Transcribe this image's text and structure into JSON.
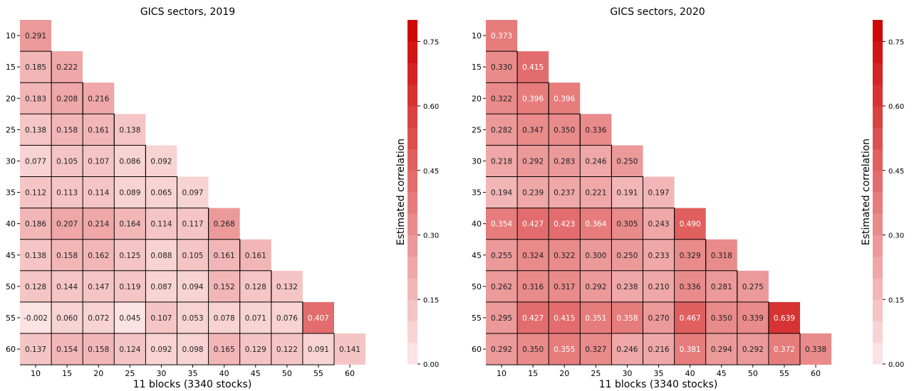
{
  "chart_data": [
    {
      "type": "heatmap",
      "title": "GICS sectors, 2019",
      "xlabel": "11 blocks (3340 stocks)",
      "ylabel": "",
      "categories": [
        "10",
        "15",
        "20",
        "25",
        "30",
        "35",
        "40",
        "45",
        "50",
        "55",
        "60"
      ],
      "matrix_lower_triangle": [
        [
          "0.291"
        ],
        [
          "0.185",
          "0.222"
        ],
        [
          "0.183",
          "0.208",
          "0.216"
        ],
        [
          "0.138",
          "0.158",
          "0.161",
          "0.138"
        ],
        [
          "0.077",
          "0.105",
          "0.107",
          "0.086",
          "0.092"
        ],
        [
          "0.112",
          "0.113",
          "0.114",
          "0.089",
          "0.065",
          "0.097"
        ],
        [
          "0.186",
          "0.207",
          "0.214",
          "0.164",
          "0.114",
          "0.117",
          "0.268"
        ],
        [
          "0.138",
          "0.158",
          "0.162",
          "0.125",
          "0.088",
          "0.105",
          "0.161",
          "0.161"
        ],
        [
          "0.128",
          "0.144",
          "0.147",
          "0.119",
          "0.087",
          "0.094",
          "0.152",
          "0.128",
          "0.132"
        ],
        [
          "-0.002",
          "0.060",
          "0.072",
          "0.045",
          "0.107",
          "0.053",
          "0.078",
          "0.071",
          "0.076",
          "0.407"
        ],
        [
          "0.137",
          "0.154",
          "0.158",
          "0.124",
          "0.092",
          "0.098",
          "0.165",
          "0.129",
          "0.122",
          "0.091",
          "0.141"
        ]
      ],
      "colorbar": {
        "label": "Estimated correlation",
        "range": [
          0,
          0.8
        ],
        "ticks": [
          "0.00",
          "0.15",
          "0.30",
          "0.45",
          "0.60",
          "0.75"
        ],
        "levels": 16,
        "color_low": "#fde9ea",
        "color_high": "#cc0000"
      },
      "grid": false,
      "legend": "none"
    },
    {
      "type": "heatmap",
      "title": "GICS sectors, 2020",
      "xlabel": "11 blocks (3340 stocks)",
      "ylabel": "",
      "categories": [
        "10",
        "15",
        "20",
        "25",
        "30",
        "35",
        "40",
        "45",
        "50",
        "55",
        "60"
      ],
      "matrix_lower_triangle": [
        [
          "0.373"
        ],
        [
          "0.330",
          "0.415"
        ],
        [
          "0.322",
          "0.396",
          "0.396"
        ],
        [
          "0.282",
          "0.347",
          "0.350",
          "0.336"
        ],
        [
          "0.218",
          "0.292",
          "0.283",
          "0.246",
          "0.250"
        ],
        [
          "0.194",
          "0.239",
          "0.237",
          "0.221",
          "0.191",
          "0.197"
        ],
        [
          "0.354",
          "0.427",
          "0.423",
          "0.364",
          "0.305",
          "0.243",
          "0.490"
        ],
        [
          "0.255",
          "0.324",
          "0.322",
          "0.300",
          "0.250",
          "0.233",
          "0.329",
          "0.318"
        ],
        [
          "0.262",
          "0.316",
          "0.317",
          "0.292",
          "0.238",
          "0.210",
          "0.336",
          "0.281",
          "0.275"
        ],
        [
          "0.295",
          "0.427",
          "0.415",
          "0.351",
          "0.358",
          "0.270",
          "0.467",
          "0.350",
          "0.339",
          "0.639"
        ],
        [
          "0.292",
          "0.350",
          "0.355",
          "0.327",
          "0.246",
          "0.216",
          "0.381",
          "0.294",
          "0.292",
          "0.372",
          "0.338"
        ]
      ],
      "colorbar": {
        "label": "Estimated correlation",
        "range": [
          0,
          0.8
        ],
        "ticks": [
          "0.00",
          "0.15",
          "0.30",
          "0.45",
          "0.60",
          "0.75"
        ],
        "levels": 16,
        "color_low": "#fde9ea",
        "color_high": "#cc0000"
      },
      "grid": false,
      "legend": "none"
    }
  ]
}
